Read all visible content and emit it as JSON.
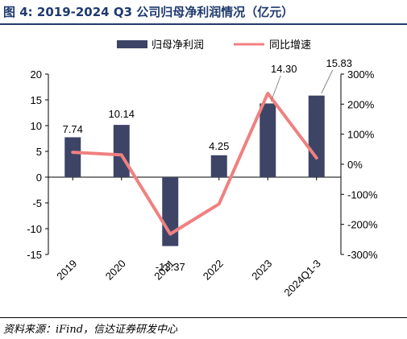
{
  "title": "图 4:  2019-2024 Q3 公司归母净利润情况（亿元）",
  "source": "资料来源：iFind，信达证券研发中心",
  "colors": {
    "bar": "#3d4466",
    "line": "#f08080",
    "title": "#1f3a6e"
  },
  "chart_data": {
    "type": "bar",
    "categories": [
      "2019",
      "2020",
      "2021",
      "2022",
      "2023",
      "2024Q1-3"
    ],
    "series": [
      {
        "name": "归母净利润",
        "type": "bar",
        "axis": "left",
        "values": [
          7.74,
          10.14,
          -13.37,
          4.25,
          14.3,
          15.83
        ],
        "labels": [
          "7.74",
          "10.14",
          "-13.37",
          "4.25",
          "14.30",
          "15.83"
        ]
      },
      {
        "name": "同比增速",
        "type": "line",
        "axis": "right",
        "values": [
          40,
          31,
          -232,
          -132,
          236,
          21
        ]
      }
    ],
    "y_left": {
      "range": [
        -15,
        20
      ],
      "ticks": [
        "20",
        "15",
        "10",
        "5",
        "0",
        "-5",
        "-10",
        "-15"
      ]
    },
    "y_right": {
      "range": [
        -300,
        300
      ],
      "ticks": [
        "300%",
        "200%",
        "100%",
        "0%",
        "-100%",
        "-200%",
        "-300%"
      ]
    },
    "legend": "top-center",
    "grid": false
  }
}
